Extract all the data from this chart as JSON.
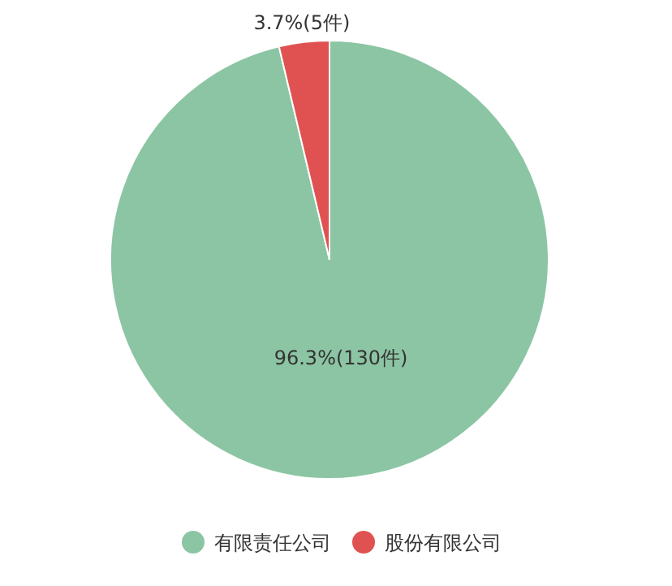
{
  "chart_data": {
    "type": "pie",
    "categories": [
      "有限责任公司",
      "股份有限公司"
    ],
    "values": [
      130,
      5
    ],
    "colors": [
      "#8cc5a3",
      "#e05252"
    ],
    "value_labels": [
      "96.3%(130件)",
      "3.7%(5件)"
    ],
    "legend": "bottom"
  }
}
